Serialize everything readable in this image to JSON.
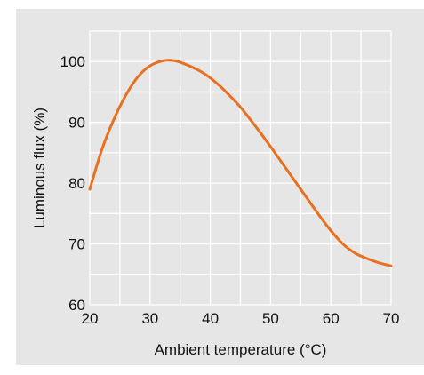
{
  "chart_data": {
    "type": "line",
    "title": "",
    "xlabel": "Ambient temperature (°C)",
    "ylabel": "Luminous flux (%)",
    "xlim": [
      20,
      70
    ],
    "ylim": [
      60,
      105
    ],
    "x_ticks": [
      20,
      30,
      40,
      50,
      60,
      70
    ],
    "y_ticks": [
      60,
      70,
      80,
      90,
      100
    ],
    "x_tick_labels": [
      "20",
      "30",
      "40",
      "50",
      "60",
      "70"
    ],
    "y_tick_labels": [
      "60",
      "70",
      "80",
      "90",
      "100"
    ],
    "grid": true,
    "x_grid_step": 5,
    "y_grid_step": 5,
    "legend": "none",
    "series": [
      {
        "color": "#e8701f",
        "points": [
          [
            20,
            79
          ],
          [
            22,
            85.5
          ],
          [
            24,
            90.5
          ],
          [
            26,
            94.5
          ],
          [
            28,
            97.5
          ],
          [
            30,
            99.3
          ],
          [
            32,
            100.1
          ],
          [
            33.5,
            100.2
          ],
          [
            35,
            99.9
          ],
          [
            38,
            98.6
          ],
          [
            40,
            97.3
          ],
          [
            42,
            95.6
          ],
          [
            45,
            92.5
          ],
          [
            48,
            88.7
          ],
          [
            50,
            86
          ],
          [
            53,
            81.8
          ],
          [
            55,
            79
          ],
          [
            58,
            74.8
          ],
          [
            60,
            72.2
          ],
          [
            62,
            70
          ],
          [
            64,
            68.5
          ],
          [
            66,
            67.6
          ],
          [
            68,
            66.9
          ],
          [
            70,
            66.4
          ]
        ]
      }
    ]
  }
}
